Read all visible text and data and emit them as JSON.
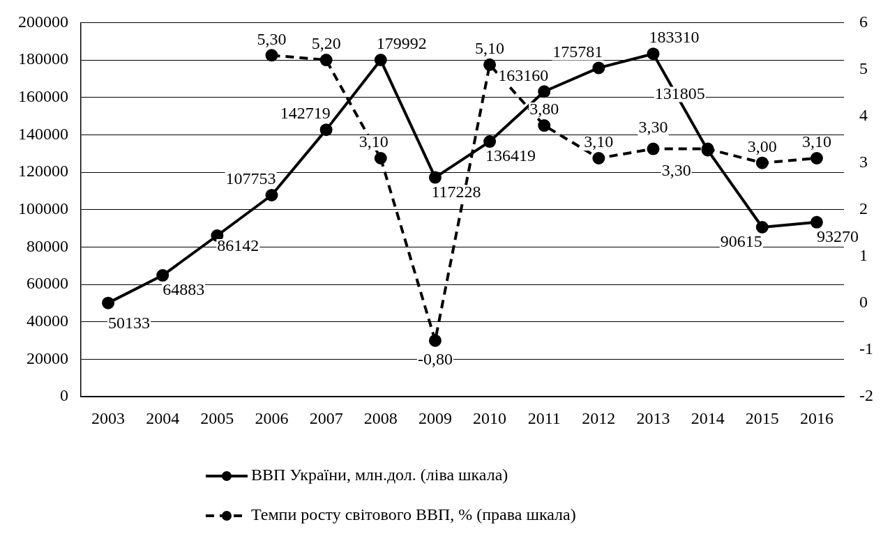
{
  "chart_data": {
    "type": "line",
    "categories": [
      "2003",
      "2004",
      "2005",
      "2006",
      "2007",
      "2008",
      "2009",
      "2010",
      "2011",
      "2012",
      "2013",
      "2014",
      "2015",
      "2016"
    ],
    "series": [
      {
        "name": "ВВП України, млн.дол. (ліва шкала)",
        "color": "#000000",
        "line_style": "solid",
        "values": [
          50133,
          64883,
          86142,
          107753,
          142719,
          179992,
          117228,
          136419,
          163160,
          175781,
          183310,
          131805,
          90615,
          93270
        ],
        "value_labels": [
          "50133",
          "64883",
          "86142",
          "107753",
          "142719",
          "179992",
          "117228",
          "136419",
          "163160",
          "175781",
          "183310",
          "131805",
          "90615",
          "93270"
        ]
      },
      {
        "name": "Темпи росту світового ВВП, % (права шкала)",
        "color": "#000000",
        "axis": "y2",
        "line_style": "dashed",
        "values": [
          null,
          null,
          null,
          5.3,
          5.2,
          3.1,
          -0.8,
          5.1,
          3.8,
          3.1,
          3.3,
          3.3,
          3.0,
          3.1
        ],
        "value_labels": [
          null,
          null,
          null,
          "5,30",
          "5,20",
          "3,10",
          "-0,80",
          "5,10",
          "3,80",
          "3,10",
          "3,30",
          "3,30",
          "3,00",
          "3,10"
        ]
      }
    ],
    "ylim": [
      0,
      200000
    ],
    "yticks": [
      0,
      20000,
      40000,
      60000,
      80000,
      100000,
      120000,
      140000,
      160000,
      180000,
      200000
    ],
    "y2lim": [
      -2,
      6
    ],
    "y2ticks": [
      -2,
      -1,
      0,
      1,
      2,
      3,
      4,
      5,
      6
    ],
    "grid": "y",
    "legend": "bottom",
    "marker": "circle"
  }
}
